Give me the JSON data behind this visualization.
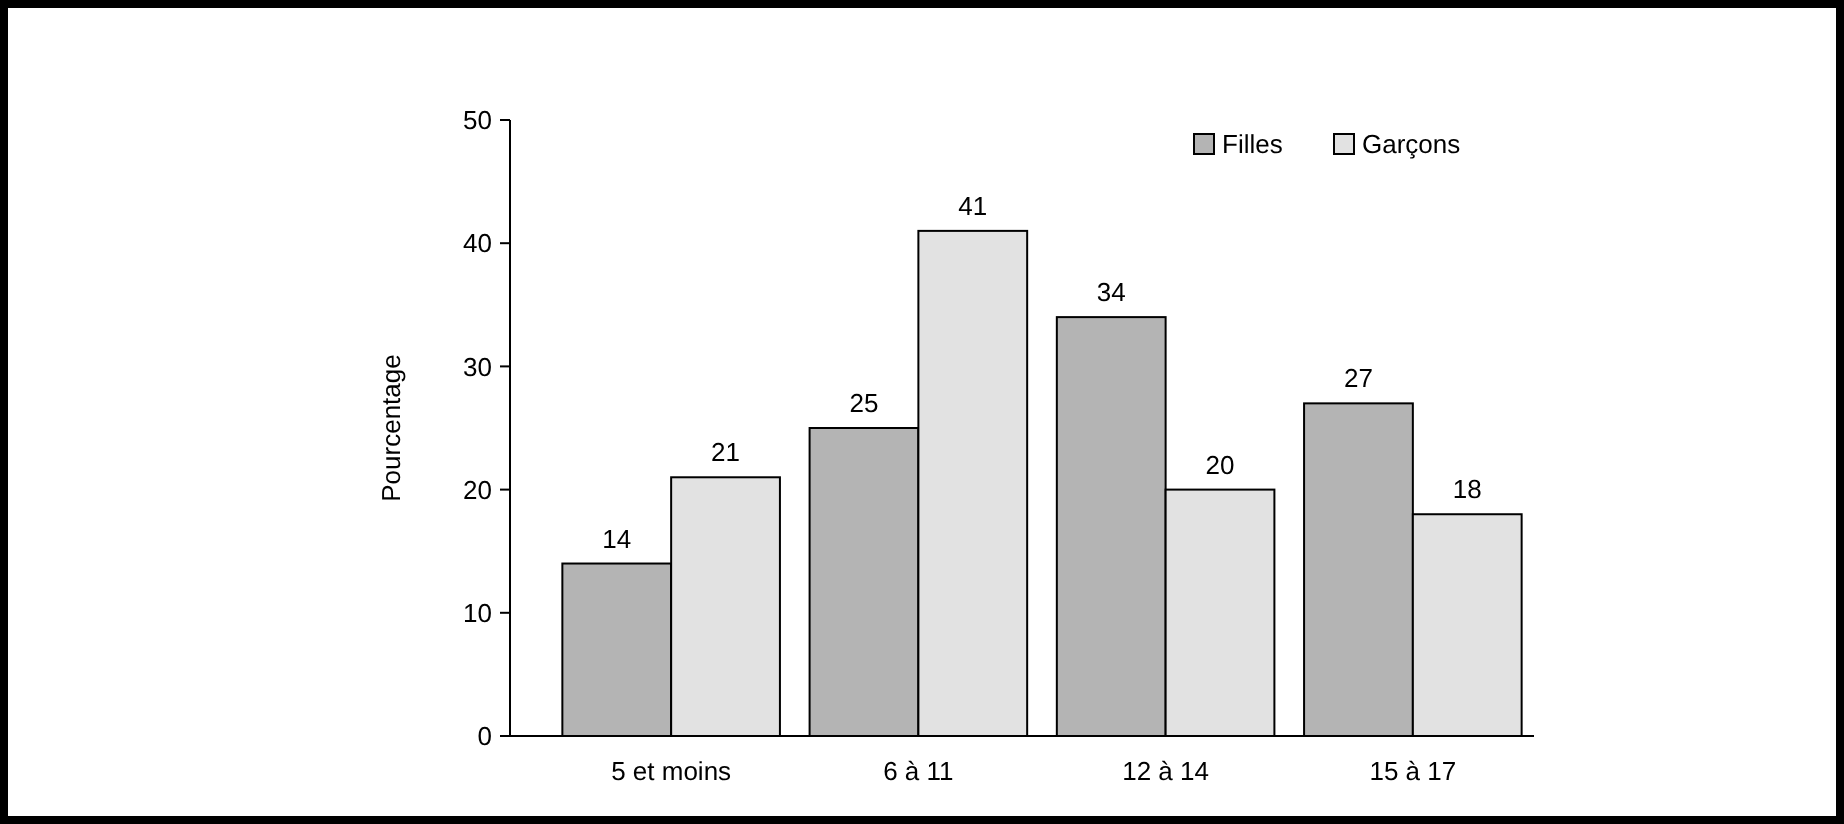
{
  "chart_data": {
    "type": "bar",
    "ylabel": "Pourcentage",
    "categories": [
      "5 et moins",
      "6 à 11",
      "12 à 14",
      "15 à 17"
    ],
    "series": [
      {
        "name": "Filles",
        "color": "#b4b4b4",
        "values": [
          14,
          25,
          34,
          27
        ]
      },
      {
        "name": "Garçons",
        "color": "#e2e2e2",
        "values": [
          21,
          41,
          20,
          18
        ]
      }
    ],
    "ylim": [
      0,
      50
    ],
    "yticks": [
      0,
      10,
      20,
      30,
      40,
      50
    ],
    "data_labels": true,
    "legend": "top right",
    "grid": false
  }
}
